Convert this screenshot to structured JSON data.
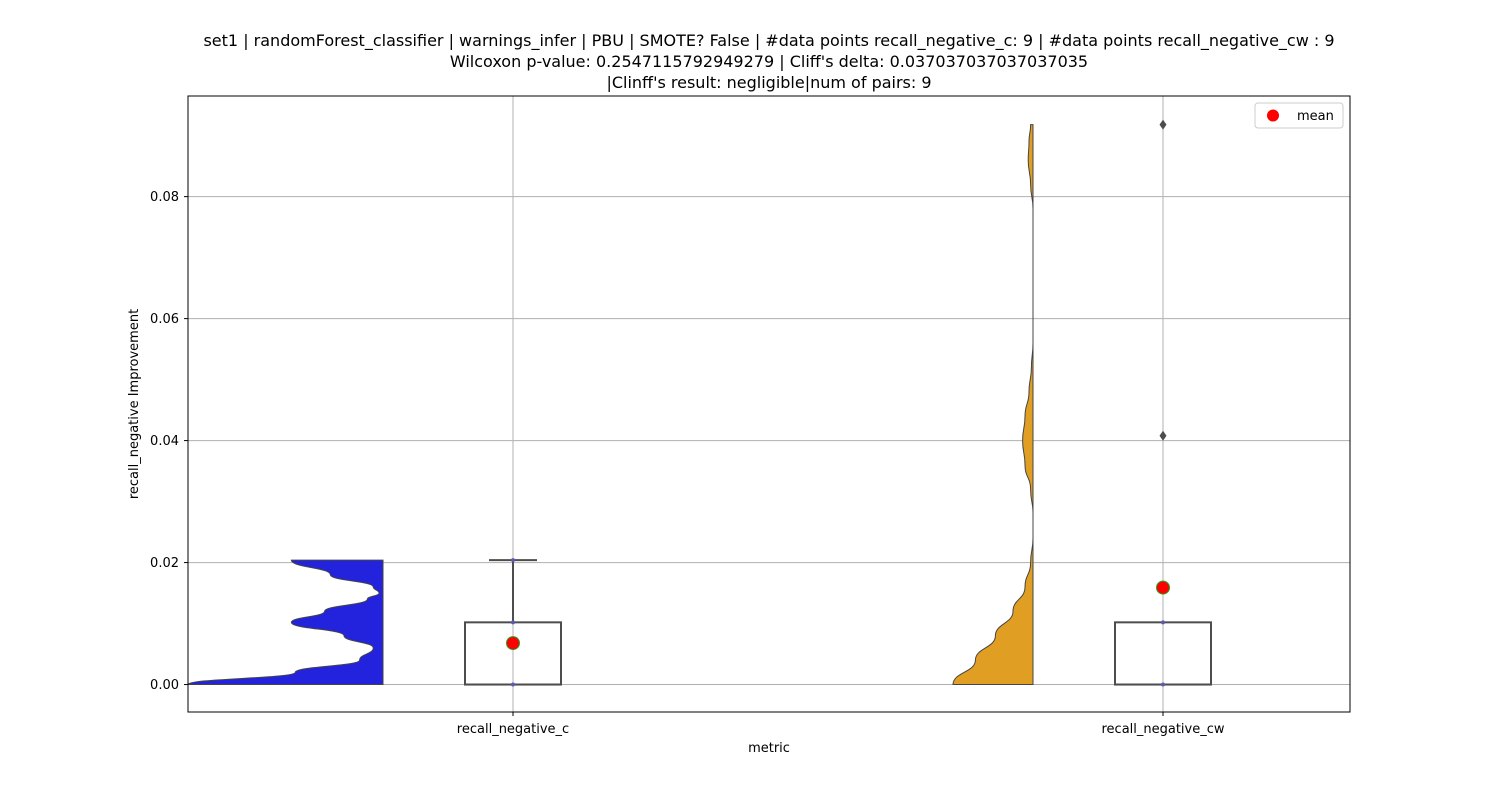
{
  "chart_data": {
    "type": "violin_box",
    "title_lines": [
      "set1 | randomForest_classifier | warnings_infer | PBU | SMOTE? False | #data points recall_negative_c: 9 | #data points recall_negative_cw : 9",
      "Wilcoxon p-value: 0.2547115792949279 | Cliff's delta: 0.037037037037037035",
      "|Clinff's result: negligible|num of pairs: 9"
    ],
    "xlabel": "metric",
    "ylabel": "recall_negative Improvement",
    "categories": [
      "recall_negative_c",
      "recall_negative_cw"
    ],
    "ylim": [
      -0.0045,
      0.0965
    ],
    "yticks": [
      0.0,
      0.02,
      0.04,
      0.06,
      0.08
    ],
    "ytick_labels": [
      "0.00",
      "0.02",
      "0.04",
      "0.06",
      "0.08"
    ],
    "grid": true,
    "legend": {
      "position": "top-right",
      "entries": [
        "mean"
      ]
    },
    "colors": {
      "violin_c": "#2323dd",
      "violin_cw": "#e09e22",
      "mean_marker": "#ff0000",
      "mean_edge": "#2a9d2a",
      "box_edge": "#4d4d4d",
      "outlier": "#4d4d4d",
      "grid": "#b0b0b0"
    },
    "series": [
      {
        "name": "recall_negative_c",
        "box": {
          "q1": 0.0,
          "median": 0.0,
          "q3": 0.0102,
          "whisker_low": 0.0,
          "whisker_high": 0.0204
        },
        "mean": 0.0068,
        "outliers": [],
        "points": [
          0.0,
          0.0102,
          0.0204
        ],
        "density": [
          [
            0.0,
            1.0
          ],
          [
            0.002,
            0.45
          ],
          [
            0.004,
            0.12
          ],
          [
            0.006,
            0.05
          ],
          [
            0.008,
            0.2
          ],
          [
            0.0102,
            0.47
          ],
          [
            0.012,
            0.3
          ],
          [
            0.014,
            0.08
          ],
          [
            0.015,
            0.02
          ],
          [
            0.016,
            0.05
          ],
          [
            0.018,
            0.27
          ],
          [
            0.0204,
            0.47
          ]
        ]
      },
      {
        "name": "recall_negative_cw",
        "box": {
          "q1": 0.0,
          "median": 0.0,
          "q3": 0.0102,
          "whisker_low": 0.0,
          "whisker_high": 0.0102
        },
        "mean": 0.0159,
        "outliers": [
          0.0408,
          0.0918
        ],
        "points": [
          0.0,
          0.0102
        ],
        "density": [
          [
            0.0,
            1.0
          ],
          [
            0.004,
            0.72
          ],
          [
            0.008,
            0.47
          ],
          [
            0.012,
            0.25
          ],
          [
            0.016,
            0.1
          ],
          [
            0.02,
            0.03
          ],
          [
            0.024,
            0.0
          ],
          [
            0.028,
            0.0
          ],
          [
            0.032,
            0.03
          ],
          [
            0.036,
            0.1
          ],
          [
            0.04,
            0.13
          ],
          [
            0.044,
            0.1
          ],
          [
            0.048,
            0.05
          ],
          [
            0.052,
            0.02
          ],
          [
            0.056,
            0.0
          ],
          [
            0.06,
            0.0
          ],
          [
            0.065,
            0.0
          ],
          [
            0.07,
            0.0
          ],
          [
            0.075,
            0.0
          ],
          [
            0.078,
            0.0
          ],
          [
            0.082,
            0.03
          ],
          [
            0.086,
            0.06
          ],
          [
            0.089,
            0.05
          ],
          [
            0.0918,
            0.03
          ]
        ]
      }
    ]
  }
}
